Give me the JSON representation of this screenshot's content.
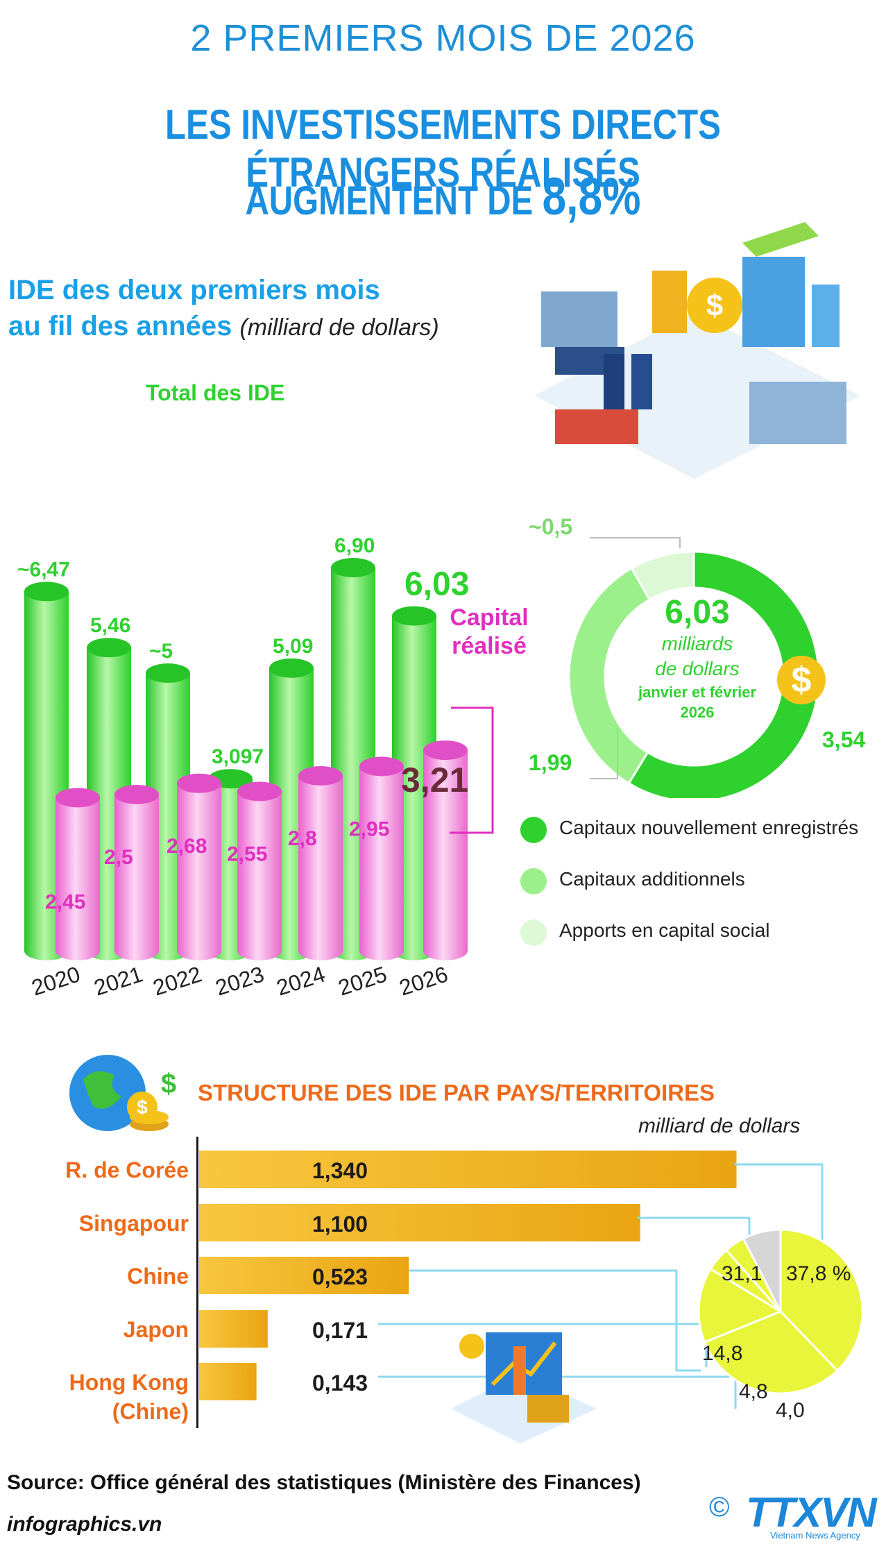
{
  "header": {
    "kicker": "2 PREMIERS MOIS DE 2026",
    "headline_line1": "LES INVESTISSEMENTS DIRECTS ÉTRANGERS RÉALISÉS",
    "headline_line2_prefix": "AUGMENTENT DE ",
    "headline_line2_value": "8,8%"
  },
  "section1": {
    "title_line1": "IDE des deux premiers mois",
    "title_line2": "au fil des années",
    "unit": "(milliard de dollars)",
    "total_label": "Total des IDE",
    "realized_label_line1": "Capital",
    "realized_label_line2": "réalisé"
  },
  "donut": {
    "center_value": "6,03",
    "center_unit_line1": "milliards",
    "center_unit_line2": "de dollars",
    "center_period_line1": "janvier et février",
    "center_period_line2": "2026",
    "legend": [
      {
        "label": "Capitaux nouvellement enregistrés",
        "color": "#2fd12f"
      },
      {
        "label": "Capitaux additionnels",
        "color": "#9cf08c"
      },
      {
        "label": "Apports en capital social",
        "color": "#dcf8d4"
      }
    ]
  },
  "section2": {
    "title": "STRUCTURE DES IDE PAR PAYS/TERRITOIRES",
    "unit": "milliard de dollars"
  },
  "footer": {
    "source": "Source: Office général des statistiques (Ministère des Finances)",
    "site": "infographics.vn",
    "logo": "TTXVN",
    "logo_sub": "Vietnam News Agency",
    "copyright": "©"
  },
  "colors": {
    "title_blue": "#1a8fe0",
    "total_green": "#2fd12f",
    "realized_pink": "#e02fc0",
    "country_orange": "#ee6a1a",
    "bar_gold": "#f0b21e",
    "pie_yellow": "#e8f53a",
    "pie_grey": "#d6d6d6"
  },
  "chart_data": [
    {
      "type": "bar",
      "categories": [
        "2020",
        "2021",
        "2022",
        "2023",
        "2024",
        "2025",
        "2026"
      ],
      "series": [
        {
          "name": "Total des IDE",
          "values": [
            6.47,
            5.46,
            5,
            3.097,
            5.09,
            6.9,
            6.03
          ],
          "labels": [
            "~6,47",
            "5,46",
            "~5",
            "3,097",
            "5,09",
            "6,90",
            "6,03"
          ]
        },
        {
          "name": "Capital réalisé",
          "values": [
            2.45,
            2.5,
            2.68,
            2.55,
            2.8,
            2.95,
            3.21
          ],
          "labels": [
            "2,45",
            "2,5",
            "2,68",
            "2,55",
            "2,8",
            "2,95",
            "3,21"
          ]
        }
      ]
    },
    {
      "type": "pie",
      "labels": [
        "Capitaux nouvellement enregistrés",
        "Capitaux additionnels",
        "Apports en capital social"
      ],
      "values": [
        3.54,
        1.99,
        0.5
      ],
      "value_labels": [
        "3,54",
        "1,99",
        "~0,5"
      ]
    },
    {
      "type": "bar",
      "orientation": "horizontal",
      "categories": [
        "R. de Corée",
        "Singapour",
        "Chine",
        "Japon",
        "Hong Kong (Chine)"
      ],
      "values": [
        1.34,
        1.1,
        0.523,
        0.171,
        0.143
      ],
      "value_labels": [
        "1,340",
        "1,100",
        "0,523",
        "0,171",
        "0,143"
      ]
    },
    {
      "type": "pie",
      "values": [
        37.8,
        31.1,
        14.8,
        4.8,
        4.0,
        7.5
      ],
      "value_labels": [
        "37,8 %",
        "31,1",
        "14,8",
        "4,8",
        "4,0",
        ""
      ]
    }
  ]
}
